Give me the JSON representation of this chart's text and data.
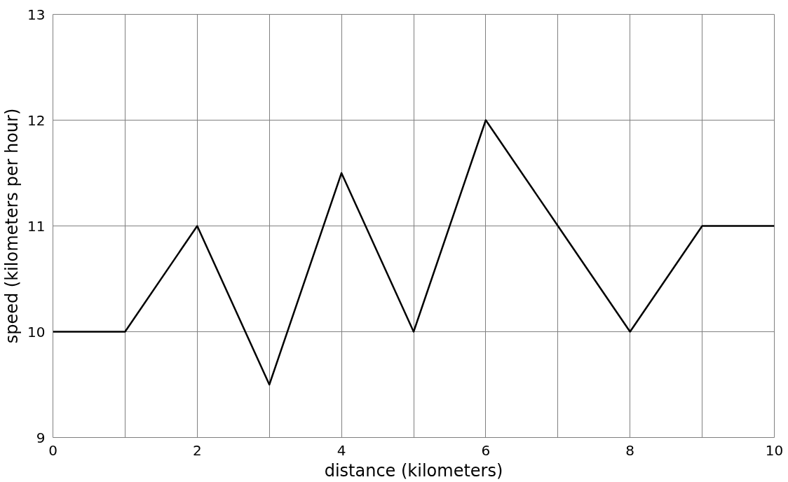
{
  "chart_data": {
    "type": "line",
    "xlabel": "distance (kilometers)",
    "ylabel": "speed (kilometers per hour)",
    "x": [
      0,
      1,
      2,
      3,
      4,
      5,
      6,
      7,
      8,
      9,
      10
    ],
    "series": [
      {
        "color": "#000000",
        "values": [
          10,
          10,
          11,
          9.5,
          11.5,
          10,
          12,
          11,
          10,
          11,
          11
        ]
      }
    ],
    "xlim": [
      0,
      10
    ],
    "ylim": [
      9,
      13
    ],
    "xticks": [
      0,
      {
        "value": 1,
        "label": null
      },
      2,
      {
        "value": 3,
        "label": null
      },
      4,
      {
        "value": 5,
        "label": null
      },
      6,
      {
        "value": 7,
        "label": null
      },
      8,
      {
        "value": 9,
        "label": null
      },
      10
    ],
    "yticks": [
      9,
      10,
      11,
      12,
      13
    ],
    "grid": true,
    "marker": "none",
    "line_style": "solid"
  }
}
